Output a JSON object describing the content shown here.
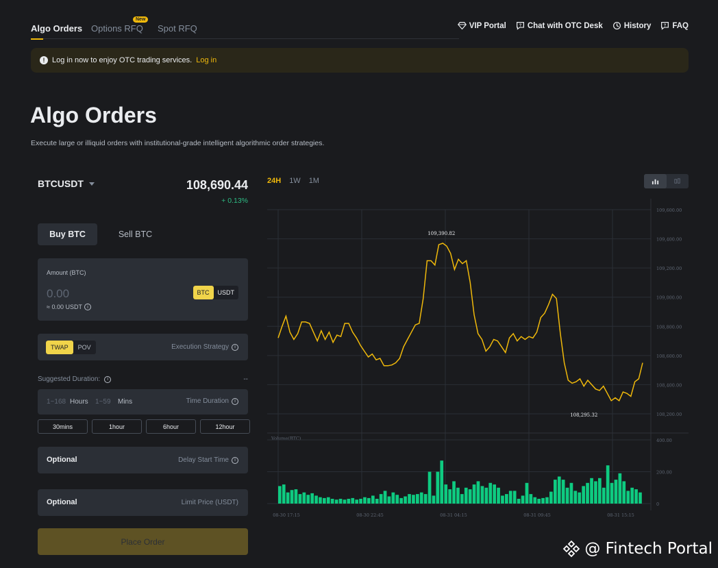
{
  "nav": {
    "tabs": [
      {
        "label": "Algo Orders"
      },
      {
        "label": "Options RFQ"
      },
      {
        "label": "Spot RFQ"
      }
    ],
    "new_badge": "New",
    "links": {
      "vip": "VIP Portal",
      "chat": "Chat with OTC Desk",
      "history": "History",
      "faq": "FAQ"
    }
  },
  "banner": {
    "text": "Log in now to enjoy OTC trading services.",
    "link": "Log in"
  },
  "page": {
    "title": "Algo Orders",
    "subtitle": "Execute large or illiquid orders with institutional-grade intelligent algorithmic order strategies."
  },
  "order": {
    "pair": "BTCUSDT",
    "price": "108,690.44",
    "change": "+ 0.13%",
    "buy_label": "Buy BTC",
    "sell_label": "Sell BTC",
    "amount_label": "Amount (BTC)",
    "amount_placeholder": "0.00",
    "amount_approx": "≈ 0.00 USDT",
    "unit_btc": "BTC",
    "unit_usdt": "USDT",
    "strategy_twap": "TWAP",
    "strategy_pov": "POV",
    "strategy_label": "Execution Strategy",
    "suggested_label": "Suggested Duration:",
    "suggested_value": "--",
    "hours_placeholder": "1~168",
    "hours_unit": "Hours",
    "mins_placeholder": "1~59",
    "mins_unit": "Mins",
    "duration_label": "Time Duration",
    "presets": [
      "30mins",
      "1hour",
      "6hour",
      "12hour"
    ],
    "delay_optional": "Optional",
    "delay_label": "Delay Start Time",
    "limit_optional": "Optional",
    "limit_label": "Limit Price  (USDT)",
    "place_label": "Place Order"
  },
  "chart_controls": {
    "ranges": [
      "24H",
      "1W",
      "1M"
    ],
    "active_range": "24H"
  },
  "chart_data": {
    "type": "line",
    "price_axis_ticks": [
      "109,600.00",
      "109,400.00",
      "109,200.00",
      "109,000.00",
      "108,800.00",
      "108,600.00",
      "108,400.00",
      "108,200.00"
    ],
    "ylim": [
      108200,
      109600
    ],
    "high_label": "109,390.82",
    "low_label": "108,295.32",
    "x_tick_labels": [
      "08-30 17:15",
      "08-30 22:45",
      "08-31 04:15",
      "08-31 09:45",
      "08-31 15:15"
    ],
    "price_series": [
      108720,
      108800,
      108870,
      108760,
      108710,
      108750,
      108830,
      108830,
      108820,
      108760,
      108700,
      108770,
      108710,
      108760,
      108690,
      108740,
      108730,
      108820,
      108820,
      108760,
      108720,
      108670,
      108630,
      108590,
      108610,
      108570,
      108580,
      108530,
      108530,
      108535,
      108550,
      108580,
      108660,
      108710,
      108760,
      108810,
      108820,
      108990,
      109250,
      109250,
      109220,
      109360,
      109370,
      109350,
      109300,
      109190,
      109260,
      109230,
      109250,
      109100,
      108880,
      108750,
      108710,
      108630,
      108660,
      108710,
      108700,
      108660,
      108620,
      108720,
      108750,
      108700,
      108730,
      108710,
      108730,
      108720,
      108760,
      108860,
      108890,
      108950,
      109020,
      108990,
      108750,
      108550,
      108430,
      108410,
      108420,
      108440,
      108390,
      108430,
      108400,
      108370,
      108360,
      108390,
      108340,
      108290,
      108310,
      108290,
      108350,
      108340,
      108320,
      108420,
      108440,
      108550
    ],
    "volume_label": "Volume(BTC)",
    "volume_axis_ticks": [
      "400.00",
      "200.00",
      "0"
    ],
    "volume_ylim": [
      0,
      400
    ],
    "volume_series": [
      110,
      120,
      70,
      85,
      90,
      60,
      70,
      55,
      65,
      50,
      40,
      35,
      40,
      30,
      25,
      30,
      25,
      30,
      35,
      25,
      30,
      40,
      35,
      50,
      30,
      60,
      80,
      45,
      70,
      55,
      35,
      45,
      60,
      55,
      60,
      70,
      60,
      200,
      50,
      200,
      270,
      120,
      90,
      140,
      100,
      60,
      100,
      90,
      120,
      140,
      110,
      100,
      130,
      120,
      100,
      50,
      60,
      80,
      80,
      30,
      50,
      130,
      60,
      40,
      30,
      35,
      40,
      75,
      150,
      170,
      150,
      100,
      130,
      80,
      70,
      110,
      130,
      160,
      140,
      160,
      100,
      240,
      130,
      150,
      190,
      140,
      80,
      100,
      90,
      70
    ]
  },
  "watermark": "@ Fintech Portal",
  "colors": {
    "accent": "#f0b90b",
    "up": "#2ebd85",
    "line": "#f0b90b",
    "volume": "#0ecb81"
  }
}
